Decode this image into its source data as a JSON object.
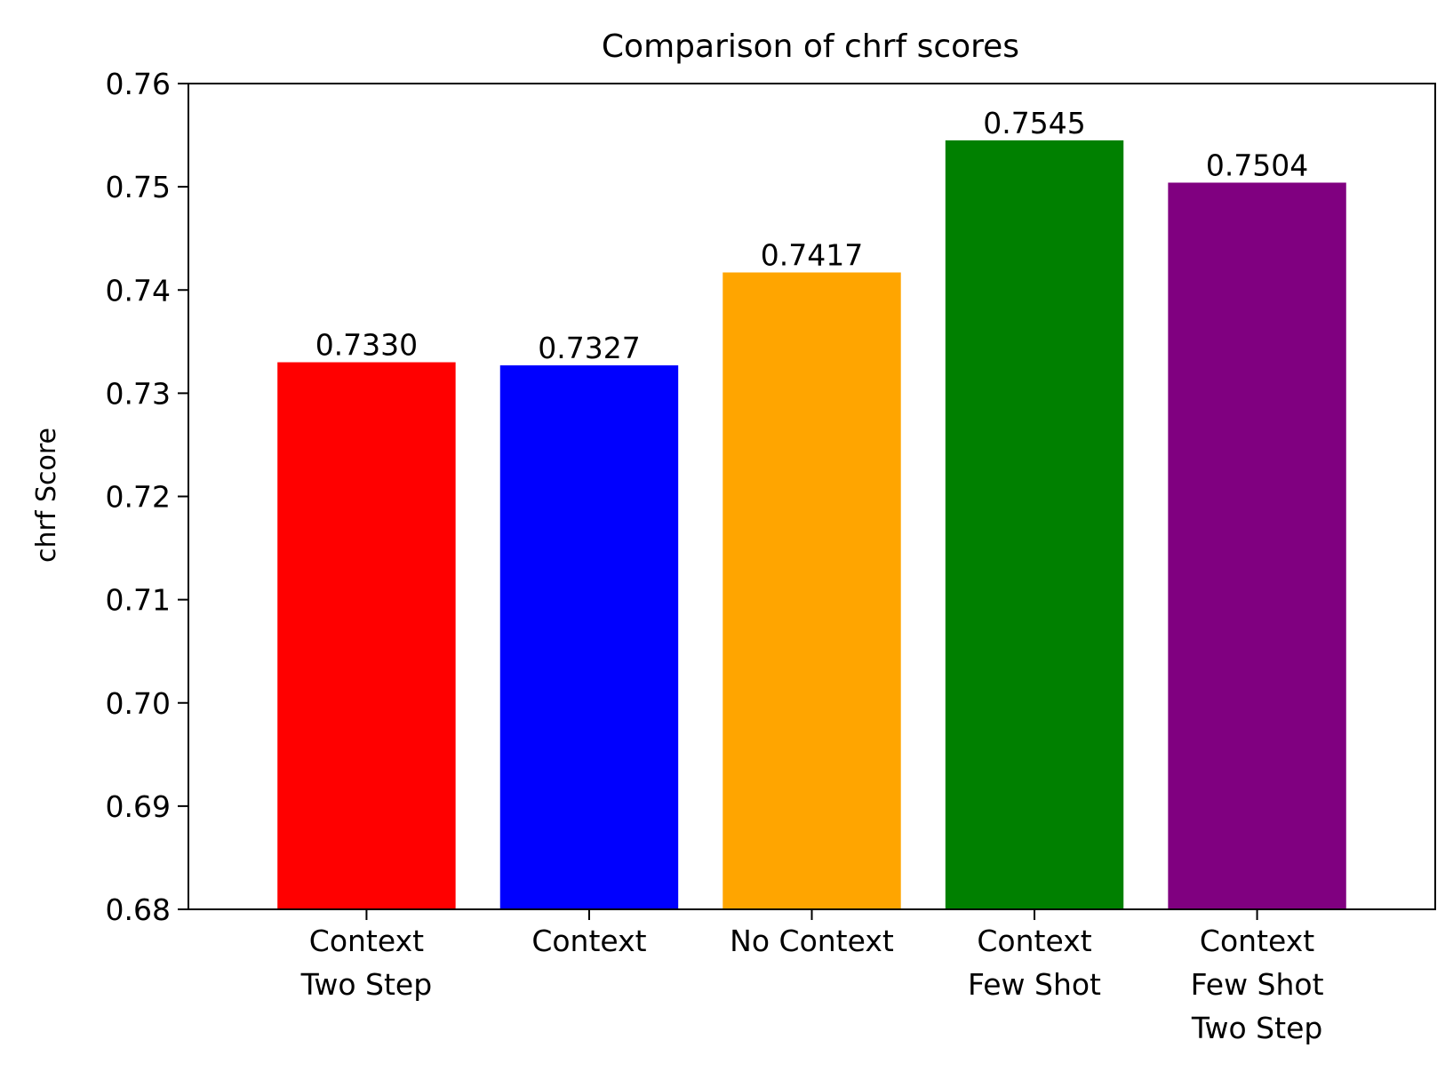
{
  "chart_data": {
    "type": "bar",
    "title": "Comparison of chrf scores",
    "xlabel": "",
    "ylabel": "chrf Score",
    "ylim": [
      0.68,
      0.76
    ],
    "yticks": [
      "0.68",
      "0.69",
      "0.70",
      "0.71",
      "0.72",
      "0.73",
      "0.74",
      "0.75",
      "0.76"
    ],
    "categories": [
      [
        "Context",
        "Two Step"
      ],
      [
        "Context"
      ],
      [
        "No Context"
      ],
      [
        "Context",
        "Few Shot"
      ],
      [
        "Context",
        "Few Shot",
        "Two Step"
      ]
    ],
    "values": [
      0.733,
      0.7327,
      0.7417,
      0.7545,
      0.7504
    ],
    "value_labels": [
      "0.7330",
      "0.7327",
      "0.7417",
      "0.7545",
      "0.7504"
    ],
    "colors": [
      "#ff0000",
      "#0000ff",
      "#ffa500",
      "#008000",
      "#800080"
    ],
    "grid": false,
    "legend": "none"
  }
}
